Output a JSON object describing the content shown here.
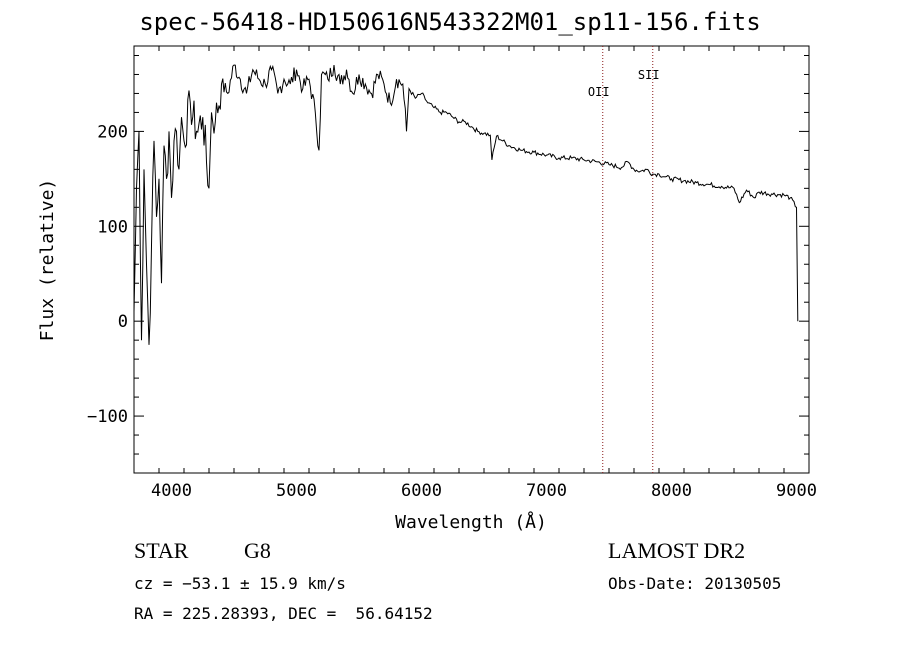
{
  "chart_data": {
    "type": "line",
    "title": "spec-56418-HD150616N543322M01_sp11-156.fits",
    "xlabel": "Wavelength (Å)",
    "ylabel": "Flux (relative)",
    "xlim": [
      3700,
      9100
    ],
    "ylim": [
      -160,
      290
    ],
    "xticks": [
      4000,
      5000,
      6000,
      7000,
      8000,
      9000
    ],
    "yticks": [
      -100,
      0,
      100,
      200
    ],
    "series": [
      {
        "x": [
          3700,
          3720,
          3740,
          3760,
          3780,
          3800,
          3820,
          3840,
          3860,
          3880,
          3900,
          3920,
          3940,
          3960,
          3980,
          4000,
          4020,
          4040,
          4060,
          4080,
          4100,
          4150,
          4200,
          4250,
          4300,
          4320,
          4350,
          4400,
          4450,
          4500,
          4550,
          4600,
          4650,
          4700,
          4750,
          4800,
          4850,
          4900,
          4950,
          5000,
          5050,
          5100,
          5150,
          5180,
          5200,
          5250,
          5300,
          5350,
          5400,
          5450,
          5500,
          5550,
          5600,
          5650,
          5700,
          5750,
          5800,
          5850,
          5880,
          5900,
          5950,
          6000,
          6050,
          6100,
          6150,
          6200,
          6250,
          6300,
          6350,
          6400,
          6450,
          6500,
          6550,
          6563,
          6600,
          6650,
          6700,
          6800,
          6900,
          7000,
          7100,
          7200,
          7300,
          7400,
          7500,
          7600,
          7650,
          7700,
          7750,
          7800,
          7850,
          7900,
          7950,
          8000,
          8100,
          8200,
          8300,
          8400,
          8500,
          8542,
          8600,
          8662,
          8700,
          8800,
          8900,
          8950,
          9000,
          9010
        ],
        "y": [
          10,
          140,
          200,
          -20,
          160,
          60,
          -25,
          80,
          190,
          110,
          150,
          40,
          185,
          150,
          200,
          130,
          190,
          200,
          160,
          215,
          190,
          230,
          200,
          215,
          140,
          220,
          210,
          250,
          240,
          270,
          255,
          240,
          265,
          255,
          250,
          265,
          240,
          255,
          250,
          265,
          245,
          255,
          220,
          180,
          260,
          255,
          270,
          250,
          265,
          240,
          260,
          250,
          240,
          260,
          250,
          230,
          255,
          250,
          200,
          245,
          235,
          240,
          230,
          225,
          220,
          220,
          215,
          210,
          210,
          205,
          200,
          198,
          196,
          170,
          195,
          190,
          185,
          180,
          178,
          175,
          172,
          172,
          170,
          168,
          165,
          162,
          168,
          160,
          158,
          160,
          155,
          155,
          152,
          150,
          148,
          146,
          144,
          142,
          140,
          125,
          138,
          130,
          136,
          134,
          133,
          130,
          120,
          0
        ]
      }
    ],
    "annotations": [
      {
        "label": "OII",
        "x": 7450
      },
      {
        "label": "SII",
        "x": 7850
      }
    ],
    "grid": false
  },
  "info": {
    "object_class": "STAR",
    "subclass": "G8",
    "survey": "LAMOST DR2",
    "cz": "cz = −53.1 ± 15.9 km/s",
    "obs_date": "Obs-Date: 20130505",
    "radec": "RA = 225.28393, DEC =  56.64152"
  },
  "colors": {
    "line": "#000000",
    "marker_line": "#8b1a1a"
  }
}
